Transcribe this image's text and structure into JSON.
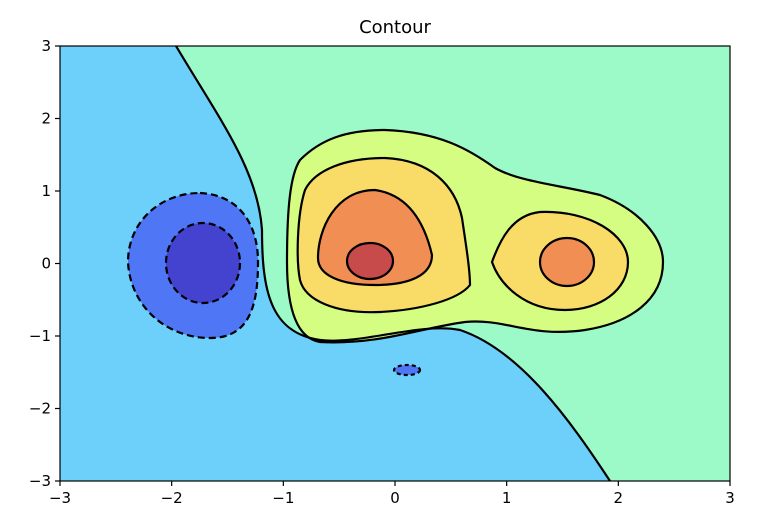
{
  "chart_data": {
    "type": "contour",
    "title": "Contour",
    "xlabel": "",
    "ylabel": "",
    "xlim": [
      -3,
      3
    ],
    "ylim": [
      -3,
      3
    ],
    "x_ticks": [
      "−3",
      "−2",
      "−1",
      "0",
      "1",
      "2",
      "3"
    ],
    "y_ticks": [
      "−3",
      "−2",
      "−1",
      "0",
      "1",
      "2",
      "3"
    ],
    "x_tick_values": [
      -3,
      -2,
      -1,
      0,
      1,
      2,
      3
    ],
    "y_tick_values": [
      -3,
      -2,
      -1,
      0,
      1,
      2,
      3
    ],
    "grid": false,
    "fill_colors": {
      "background_low": "#6dd0fb",
      "background_high": "#9cfac8",
      "level_low_1": "#4f76f5",
      "level_low_2": "#4343cf",
      "level_high_1": "#d4fd82",
      "level_high_2": "#f9dc68",
      "level_high_3": "#f08e54",
      "level_high_4": "#c84b4b"
    },
    "contour_line_color": "#000000",
    "negative_contours_dashed": true,
    "features": [
      {
        "kind": "peak",
        "center": [
          -0.2,
          0.05
        ]
      },
      {
        "kind": "peak",
        "center": [
          1.55,
          0.0
        ]
      },
      {
        "kind": "trough",
        "center": [
          -1.7,
          -0.05
        ]
      },
      {
        "kind": "trough",
        "center": [
          0.1,
          -1.47
        ]
      }
    ]
  }
}
